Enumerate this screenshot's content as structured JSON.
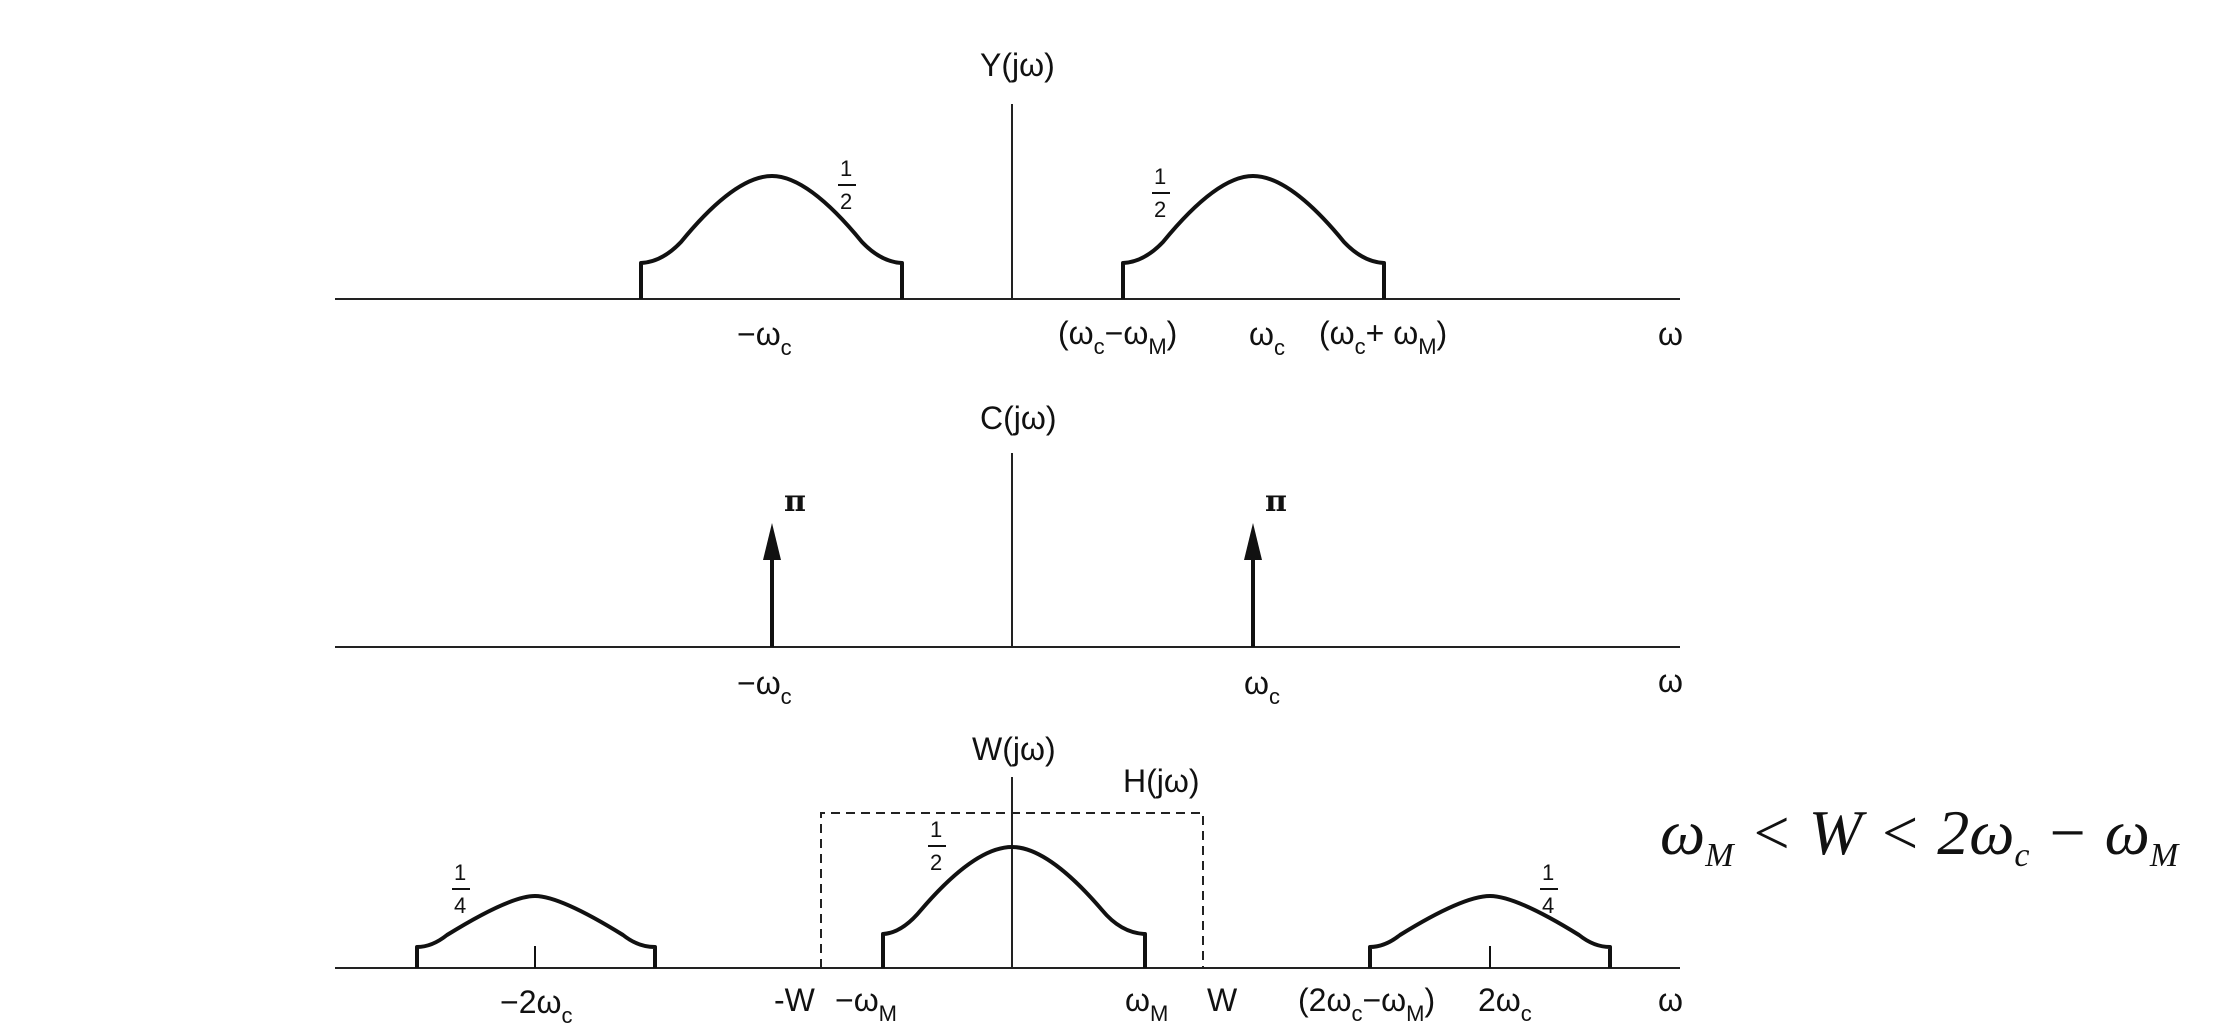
{
  "panel_y": {
    "title": "Y(jω)",
    "left_height": "1/2",
    "right_height": "1/2",
    "ticks": [
      "−ω",
      "c",
      "(ω",
      "c",
      "−ω",
      "M",
      ")",
      "ω",
      "c",
      "(ω",
      "c",
      "+ ω",
      "M",
      ")"
    ],
    "axis_label": "ω"
  },
  "panel_c": {
    "title": "C(jω)",
    "impulse_left": "π",
    "impulse_right": "π",
    "tick_left": "−ω",
    "tick_left_sub": "c",
    "tick_right": "ω",
    "tick_right_sub": "c",
    "axis_label": "ω"
  },
  "panel_w": {
    "title": "W(jω)",
    "filter_label": "H(jω)",
    "left_height": "1/4",
    "center_height": "1/2",
    "right_height": "1/4",
    "tick_neg2wc": "−2ω",
    "tick_neg2wc_sub": "c",
    "tick_negW": "-W",
    "tick_negwm": "−ω",
    "tick_negwm_sub": "M",
    "tick_wm": "ω",
    "tick_wm_sub": "M",
    "tick_W": "W",
    "tick_2wcwm": "(2ω",
    "tick_2wcwm_sub1": "c",
    "tick_2wcwm_mid": "−ω",
    "tick_2wcwm_sub2": "M",
    "tick_2wcwm_end": ")",
    "tick_2wc": "2ω",
    "tick_2wc_sub": "c",
    "axis_label": "ω"
  },
  "condition": {
    "p1": "ω",
    "p1_sub": "M",
    "p2": " < W < 2ω",
    "p2_sub": "c",
    "p3": " − ω",
    "p3_sub": "M"
  }
}
